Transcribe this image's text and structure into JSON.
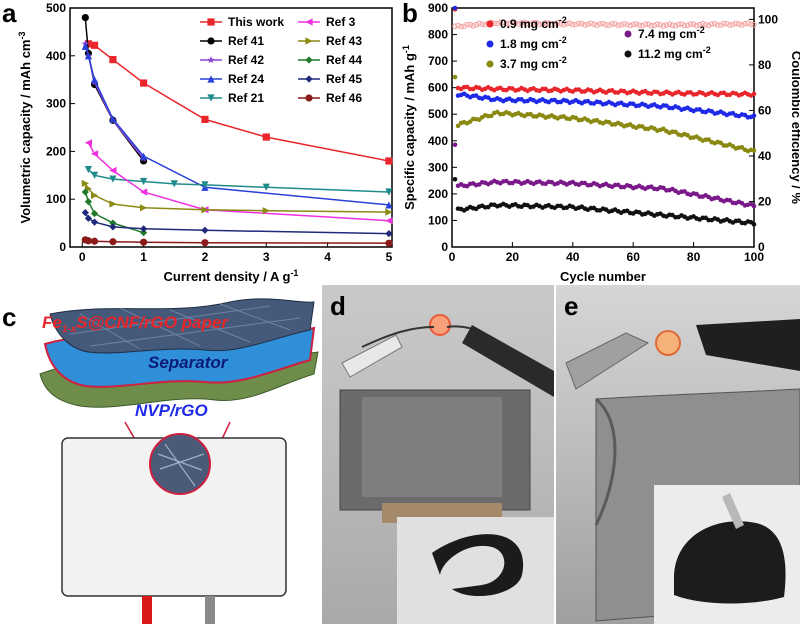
{
  "panels": {
    "a": "a",
    "b": "b",
    "c": "c",
    "d": "d",
    "e": "e"
  },
  "chart_data": [
    {
      "type": "line",
      "xlabel": "Current density / A g",
      "xlabel_sup": "-1",
      "ylabel": "Volumetric capacity / mAh cm",
      "ylabel_sup": "-3",
      "xlim": [
        -0.2,
        5.05
      ],
      "ylim": [
        0,
        500
      ],
      "xticks": [
        0,
        1,
        2,
        3,
        4,
        5
      ],
      "yticks": [
        0,
        100,
        200,
        300,
        400,
        500
      ],
      "legend_position": "top-right",
      "series": [
        {
          "name": "This work",
          "color": "#e8262b",
          "marker": "square",
          "x": [
            0.1,
            0.2,
            0.5,
            1,
            2,
            3,
            5
          ],
          "y": [
            425,
            422,
            392,
            343,
            267,
            230,
            180
          ]
        },
        {
          "name": "Ref 41",
          "color": "#000000",
          "marker": "circle",
          "x": [
            0.05,
            0.1,
            0.2,
            0.5,
            1
          ],
          "y": [
            480,
            405,
            340,
            265,
            180
          ]
        },
        {
          "name": "Ref 42",
          "color": "#8b45d6",
          "marker": "star",
          "x": [
            0.05,
            0.1,
            0.2,
            0.5,
            1
          ],
          "y": [
            425,
            400,
            345,
            265,
            185
          ]
        },
        {
          "name": "Ref 24",
          "color": "#2940d8",
          "marker": "triangle",
          "x": [
            0.05,
            0.1,
            0.2,
            0.5,
            1,
            2,
            5
          ],
          "y": [
            420,
            400,
            350,
            268,
            190,
            125,
            88
          ]
        },
        {
          "name": "Ref 21",
          "color": "#1f8a8a",
          "marker": "triangle-down",
          "x": [
            0.1,
            0.2,
            0.5,
            1,
            1.5,
            2,
            3,
            5
          ],
          "y": [
            162,
            150,
            142,
            137,
            132,
            130,
            125,
            115
          ]
        },
        {
          "name": "Ref 3",
          "color": "#f030e0",
          "marker": "triangle-left",
          "x": [
            0.1,
            0.2,
            0.5,
            1,
            2,
            5
          ],
          "y": [
            218,
            195,
            160,
            115,
            78,
            55
          ]
        },
        {
          "name": "Ref 43",
          "color": "#8a8a12",
          "marker": "triangle-right",
          "x": [
            0.05,
            0.1,
            0.2,
            0.5,
            1,
            2,
            3,
            5
          ],
          "y": [
            133,
            122,
            108,
            90,
            82,
            78,
            76,
            73
          ]
        },
        {
          "name": "Ref 44",
          "color": "#1f7a2a",
          "marker": "diamond",
          "x": [
            0.05,
            0.1,
            0.2,
            0.5,
            1
          ],
          "y": [
            115,
            95,
            70,
            50,
            30
          ]
        },
        {
          "name": "Ref 45",
          "color": "#1f2a7a",
          "marker": "diamond",
          "x": [
            0.05,
            0.1,
            0.2,
            0.5,
            1,
            2,
            5
          ],
          "y": [
            72,
            60,
            52,
            42,
            38,
            35,
            28
          ]
        },
        {
          "name": "Ref 46",
          "color": "#8b1a1a",
          "marker": "circle",
          "x": [
            0.05,
            0.1,
            0.2,
            0.5,
            1,
            2,
            5
          ],
          "y": [
            15,
            13,
            12,
            11,
            10,
            9,
            8
          ]
        }
      ]
    },
    {
      "type": "scatter",
      "xlabel": "Cycle number",
      "ylabel": "Specific capacity / mAh g",
      "ylabel_sup": "-1",
      "y2label": "Coulombic efficiency / %",
      "xlim": [
        0,
        100
      ],
      "ylim": [
        0,
        900
      ],
      "y2lim": [
        0,
        105
      ],
      "xticks": [
        0,
        20,
        40,
        60,
        80,
        100
      ],
      "yticks": [
        0,
        100,
        200,
        300,
        400,
        500,
        600,
        700,
        800,
        900
      ],
      "y2ticks": [
        0,
        20,
        40,
        60,
        80,
        100
      ],
      "series": [
        {
          "name": "0.9 mg cm",
          "name_sup": "-2",
          "color": "#e8262b",
          "y": [
            600,
            595,
            590,
            580,
            575
          ],
          "first": 895
        },
        {
          "name": "1.8 mg cm",
          "name_sup": "-2",
          "color": "#1f2ae8",
          "y": [
            575,
            555,
            548,
            530,
            490
          ],
          "first": 900
        },
        {
          "name": "3.7 mg cm",
          "name_sup": "-2",
          "color": "#8a8a12",
          "y": [
            460,
            505,
            485,
            440,
            360
          ],
          "first": 640
        },
        {
          "name": "7.4 mg cm",
          "name_sup": "-2",
          "color": "#7a1a8a",
          "y": [
            230,
            245,
            240,
            220,
            155
          ],
          "first": 385
        },
        {
          "name": "11.2 mg cm",
          "name_sup": "-2",
          "color": "#111111",
          "y": [
            140,
            158,
            150,
            120,
            90
          ],
          "first": 255
        },
        {
          "name": "Coulombic efficiency",
          "color": "#f4a0a0",
          "axis": "y2",
          "y": [
            97,
            98.5,
            98,
            97.5,
            98
          ]
        }
      ],
      "x_keypoints": [
        2,
        15,
        40,
        70,
        100
      ]
    }
  ],
  "panel_c": {
    "layer_top": "Fe",
    "layer_top_sub": "1-x",
    "layer_top_rest": "S@CNF/rGO paper",
    "layer_mid": "Separator",
    "layer_bottom": "NVP/rGO"
  }
}
